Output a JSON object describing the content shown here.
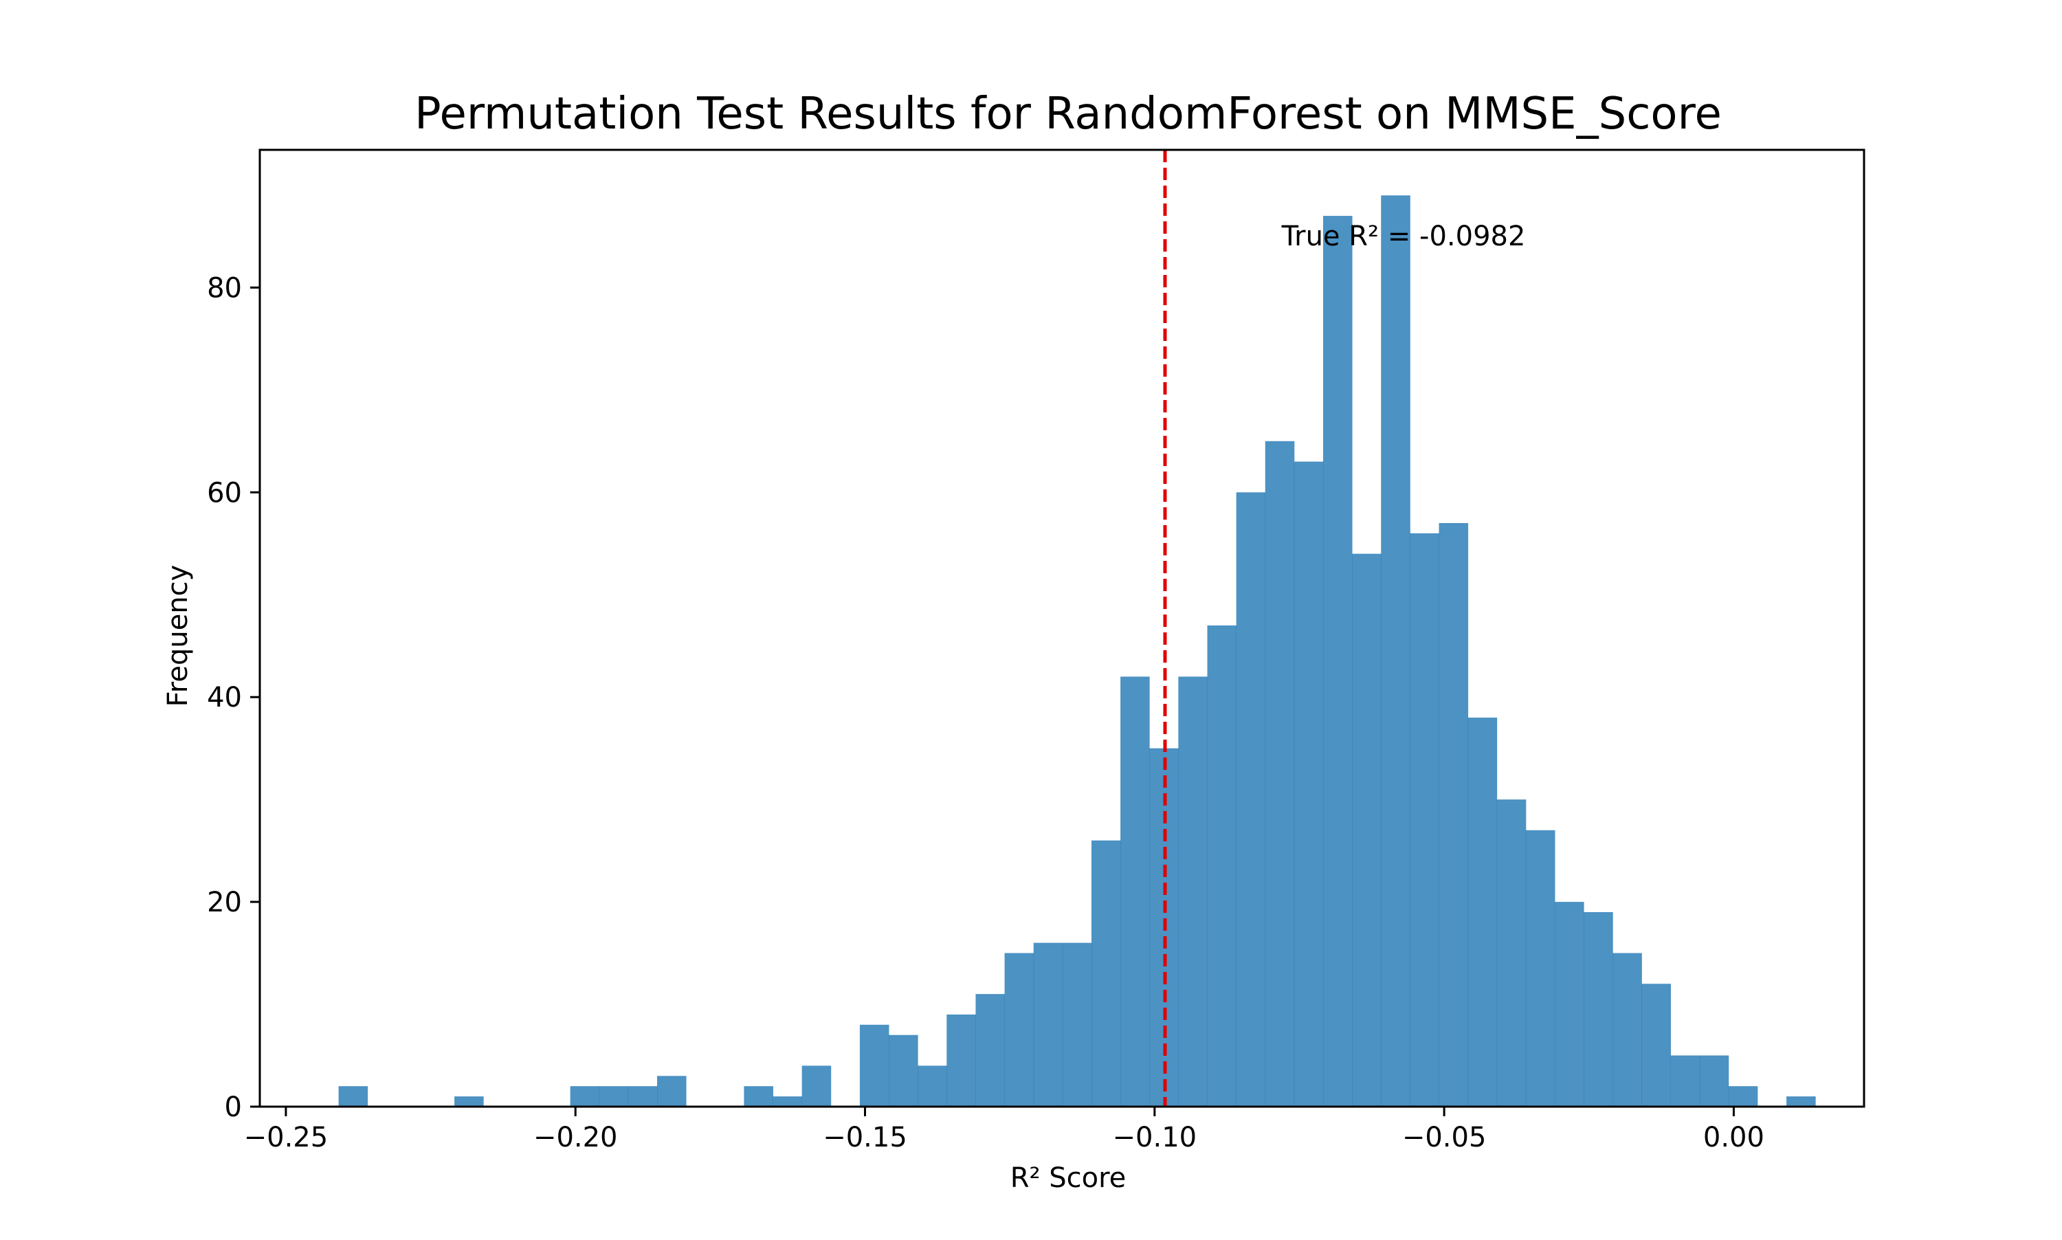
{
  "chart_data": {
    "type": "bar",
    "title": "Permutation Test Results for RandomForest on MMSE_Score",
    "xlabel": "R² Score",
    "ylabel": "Frequency",
    "xlim": [
      -0.2545,
      0.0225
    ],
    "ylim": [
      0,
      93.45
    ],
    "grid": false,
    "legend": "none",
    "bar_color": "#1f77b4",
    "bar_alpha": 0.8,
    "bin_start": -0.2409,
    "bin_width": 0.005,
    "counts": [
      2,
      0,
      0,
      0,
      1,
      0,
      0,
      0,
      2,
      2,
      2,
      3,
      0,
      0,
      2,
      1,
      4,
      0,
      8,
      7,
      4,
      9,
      11,
      15,
      16,
      16,
      26,
      42,
      35,
      42,
      47,
      60,
      65,
      63,
      87,
      54,
      89,
      56,
      57,
      38,
      30,
      27,
      20,
      19,
      15,
      12,
      5,
      5,
      2,
      0,
      1
    ],
    "x_ticks": [
      -0.25,
      -0.2,
      -0.15,
      -0.1,
      -0.05,
      0.0
    ],
    "x_tick_labels": [
      "−0.25",
      "−0.20",
      "−0.15",
      "−0.10",
      "−0.05",
      "0.00"
    ],
    "y_ticks": [
      0,
      20,
      40,
      60,
      80
    ],
    "y_tick_labels": [
      "0",
      "20",
      "40",
      "60",
      "80"
    ],
    "true_value": -0.0982,
    "true_line_color": "#e00000",
    "annotation": "True R² = -0.0982"
  }
}
